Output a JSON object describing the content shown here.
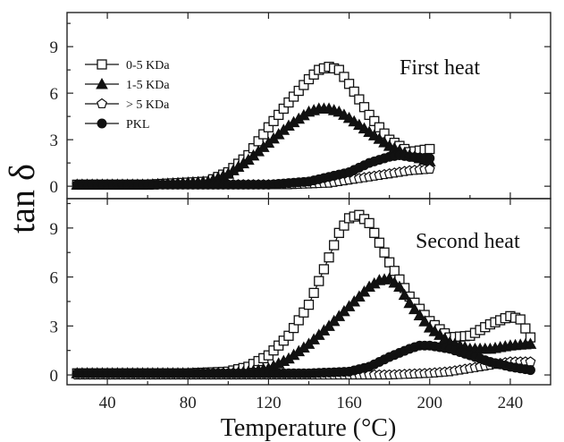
{
  "chart_data": {
    "type": "line",
    "xlabel": "Temperature (°C)",
    "ylabel": "tan δ",
    "xlim": [
      20,
      260
    ],
    "x_ticks": [
      40,
      80,
      120,
      160,
      200,
      240
    ],
    "grid": false,
    "legend_position": "top-left",
    "panels": [
      {
        "title": "First heat",
        "ylim": [
          -0.8,
          11.2
        ],
        "y_ticks": [
          0,
          3,
          6,
          9
        ],
        "series": [
          {
            "name": "0-5 KDa",
            "marker": "square-open",
            "x": [
              25,
              60,
              90,
              100,
              110,
              120,
              130,
              140,
              145,
              150,
              155,
              160,
              170,
              180,
              190,
              200
            ],
            "y": [
              0.1,
              0.1,
              0.3,
              0.9,
              2.0,
              3.8,
              5.4,
              6.9,
              7.5,
              7.7,
              7.5,
              6.6,
              4.6,
              3.0,
              2.2,
              2.4
            ]
          },
          {
            "name": "1-5 KDa",
            "marker": "triangle-filled",
            "x": [
              25,
              60,
              90,
              100,
              110,
              120,
              130,
              140,
              145,
              150,
              155,
              160,
              170,
              180,
              190,
              200
            ],
            "y": [
              0.1,
              0.1,
              0.3,
              0.8,
              1.7,
              2.8,
              3.9,
              4.8,
              5.0,
              5.0,
              4.8,
              4.4,
              3.5,
              2.6,
              2.0,
              1.6
            ]
          },
          {
            "name": "> 5 KDa",
            "marker": "pentagon-open",
            "x": [
              25,
              60,
              100,
              130,
              150,
              160,
              170,
              180,
              190,
              200
            ],
            "y": [
              0.1,
              0.1,
              0.1,
              0.1,
              0.2,
              0.4,
              0.6,
              0.8,
              1.0,
              1.1
            ]
          },
          {
            "name": "PKL",
            "marker": "circle-filled",
            "x": [
              25,
              60,
              100,
              120,
              140,
              160,
              170,
              180,
              185,
              190,
              200
            ],
            "y": [
              0.1,
              0.1,
              0.1,
              0.1,
              0.3,
              0.9,
              1.5,
              1.9,
              2.0,
              1.9,
              1.8
            ]
          }
        ]
      },
      {
        "title": "Second heat",
        "ylim": [
          -0.6,
          10.8
        ],
        "y_ticks": [
          0,
          3,
          6,
          9
        ],
        "series": [
          {
            "name": "0-5 KDa",
            "marker": "square-open",
            "x": [
              25,
              80,
              100,
              110,
              120,
              130,
              140,
              150,
              155,
              160,
              165,
              170,
              180,
              190,
              200,
              210,
              220,
              230,
              240,
              245,
              250
            ],
            "y": [
              0.1,
              0.1,
              0.2,
              0.5,
              1.2,
              2.4,
              4.3,
              7.2,
              8.7,
              9.6,
              9.8,
              9.3,
              6.9,
              4.8,
              3.3,
              2.3,
              2.4,
              3.1,
              3.6,
              3.4,
              2.3
            ]
          },
          {
            "name": "1-5 KDa",
            "marker": "triangle-filled",
            "x": [
              25,
              100,
              110,
              120,
              130,
              140,
              150,
              160,
              170,
              175,
              180,
              185,
              190,
              200,
              210,
              220,
              230,
              240,
              250
            ],
            "y": [
              0.1,
              0.1,
              0.2,
              0.4,
              1.0,
              1.9,
              3.0,
              4.2,
              5.4,
              5.8,
              5.9,
              5.4,
              4.4,
              2.9,
              2.0,
              1.6,
              1.6,
              1.8,
              1.9
            ]
          },
          {
            "name": "> 5 KDa",
            "marker": "pentagon-open",
            "x": [
              25,
              140,
              180,
              200,
              210,
              220,
              230,
              240,
              250
            ],
            "y": [
              0.0,
              0.0,
              0.0,
              0.1,
              0.2,
              0.4,
              0.6,
              0.8,
              0.8
            ]
          },
          {
            "name": "PKL",
            "marker": "circle-filled",
            "x": [
              25,
              140,
              160,
              170,
              180,
              190,
              195,
              200,
              210,
              220,
              230,
              240,
              250
            ],
            "y": [
              0.1,
              0.1,
              0.2,
              0.5,
              1.1,
              1.6,
              1.8,
              1.8,
              1.6,
              1.2,
              0.8,
              0.5,
              0.3
            ]
          }
        ]
      }
    ]
  }
}
